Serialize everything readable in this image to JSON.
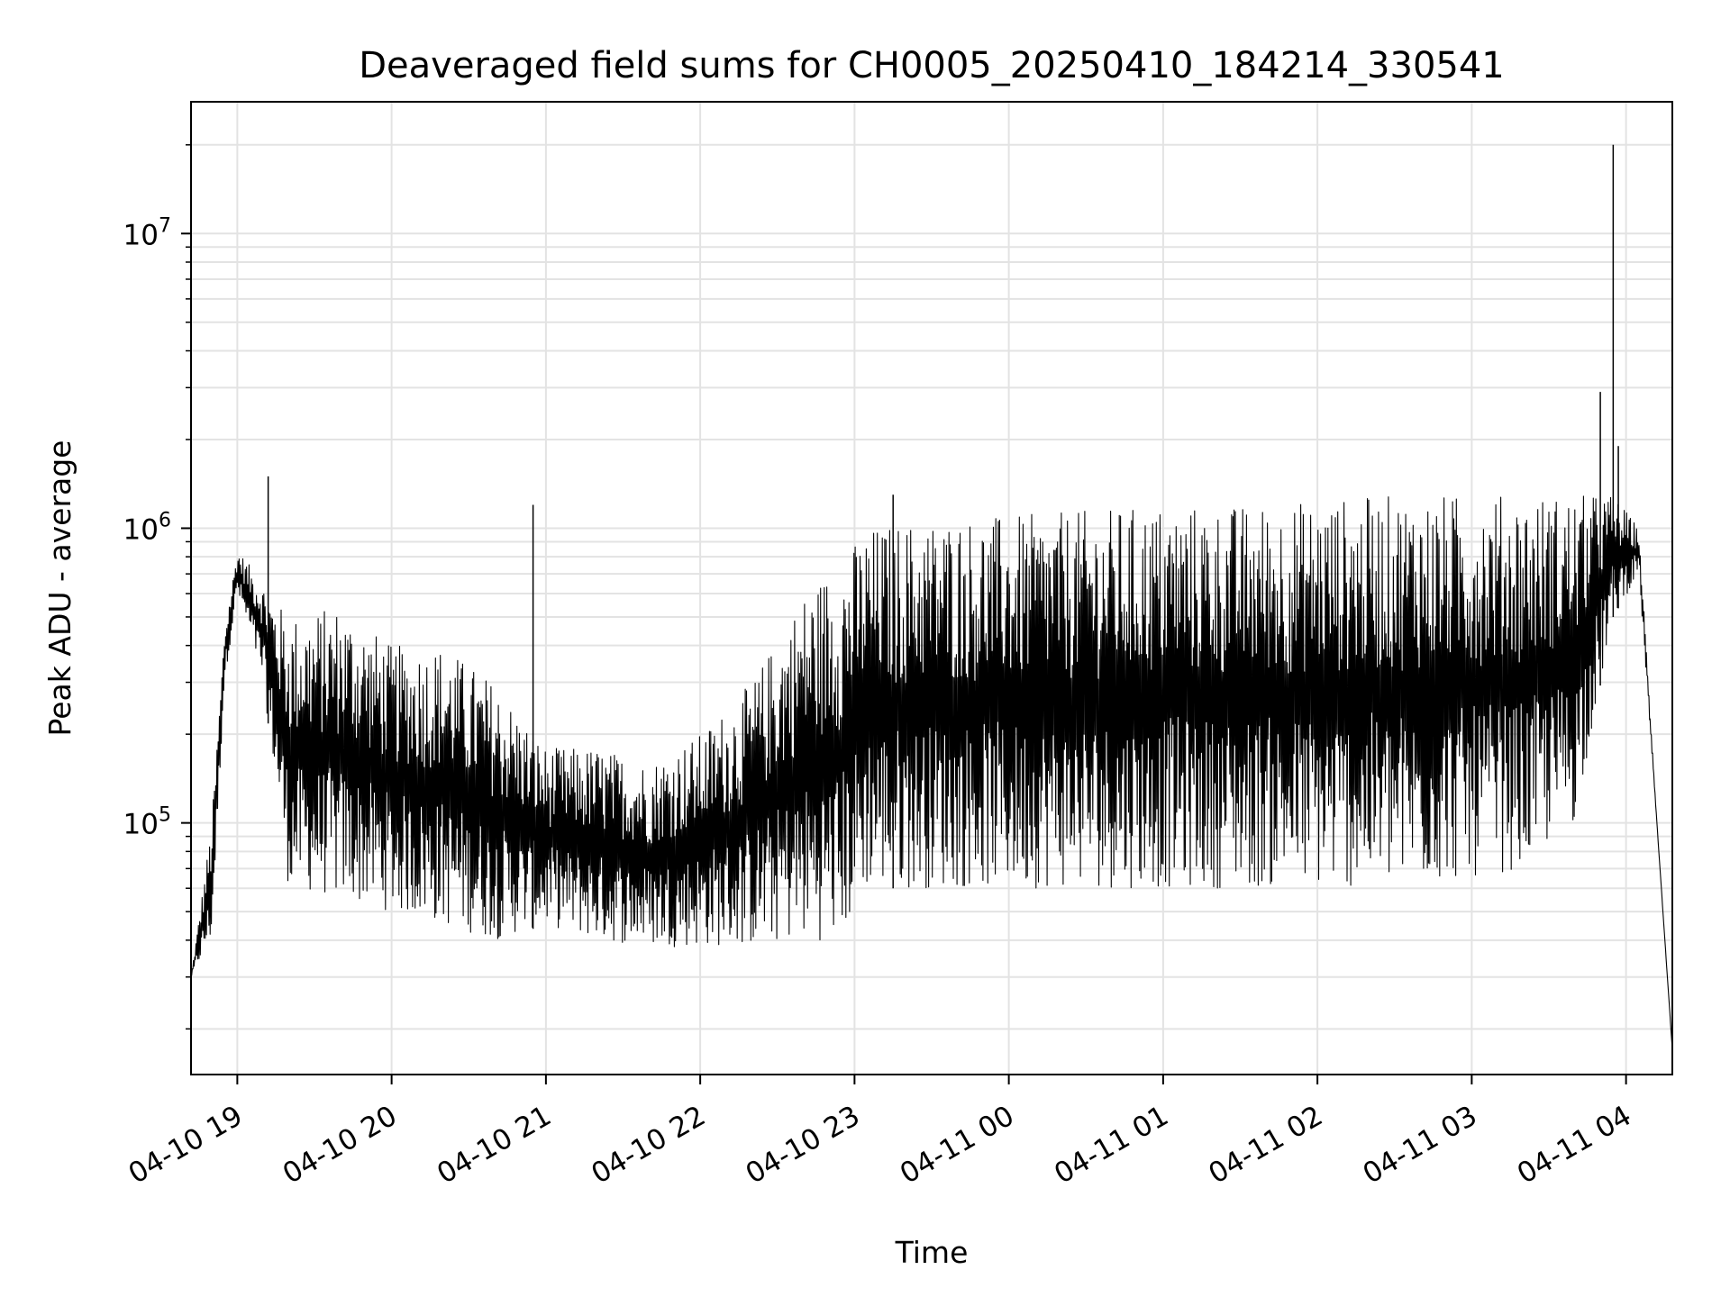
{
  "chart_data": {
    "type": "line",
    "title": "Deaveraged field sums for CH0005_20250410_184214_330541",
    "xlabel": "Time",
    "ylabel": "Peak ADU - average",
    "y_scale": "log",
    "x_ticks": [
      "04-10 19",
      "04-10 20",
      "04-10 21",
      "04-10 22",
      "04-10 23",
      "04-11 00",
      "04-11 01",
      "04-11 02",
      "04-11 03",
      "04-11 04"
    ],
    "y_ticks": [
      {
        "value": 100000,
        "base": "10",
        "exp": "5"
      },
      {
        "value": 1000000,
        "base": "10",
        "exp": "6"
      },
      {
        "value": 10000000,
        "base": "10",
        "exp": "7"
      }
    ],
    "xlim": [
      "2025-04-10 18:42",
      "2025-04-11 04:18"
    ],
    "ylim": [
      14000,
      28000000
    ],
    "grid": true,
    "line_color": "#000000",
    "grid_color": "#e3e3e3",
    "envelope": {
      "time": [
        "2025-04-10 18:42",
        "2025-04-10 18:50",
        "2025-04-10 18:55",
        "2025-04-10 19:00",
        "2025-04-10 19:10",
        "2025-04-10 19:20",
        "2025-04-10 19:40",
        "2025-04-10 20:00",
        "2025-04-10 20:20",
        "2025-04-10 20:40",
        "2025-04-10 21:00",
        "2025-04-10 21:20",
        "2025-04-10 21:40",
        "2025-04-10 22:00",
        "2025-04-10 22:20",
        "2025-04-10 22:40",
        "2025-04-10 22:55",
        "2025-04-10 23:05",
        "2025-04-10 23:20",
        "2025-04-10 23:40",
        "2025-04-11 00:00",
        "2025-04-11 00:30",
        "2025-04-11 01:00",
        "2025-04-11 01:30",
        "2025-04-11 02:00",
        "2025-04-11 02:30",
        "2025-04-11 03:00",
        "2025-04-11 03:20",
        "2025-04-11 03:40",
        "2025-04-11 03:55",
        "2025-04-11 04:05",
        "2025-04-11 04:12",
        "2025-04-11 04:18"
      ],
      "upper": [
        30000,
        100000,
        450000,
        850000,
        650000,
        500000,
        550000,
        400000,
        400000,
        300000,
        180000,
        180000,
        160000,
        200000,
        300000,
        600000,
        800000,
        1000000,
        1050000,
        1100000,
        1100000,
        1150000,
        1200000,
        1200000,
        1250000,
        1300000,
        1300000,
        1300000,
        1300000,
        1300000,
        1000000,
        100000,
        17000
      ],
      "lower": [
        30000,
        40000,
        300000,
        600000,
        300000,
        60000,
        55000,
        50000,
        45000,
        40000,
        45000,
        40000,
        38000,
        38000,
        38000,
        40000,
        40000,
        60000,
        60000,
        60000,
        60000,
        60000,
        60000,
        60000,
        60000,
        60000,
        65000,
        70000,
        100000,
        500000,
        700000,
        100000,
        17000
      ]
    },
    "spikes": [
      {
        "time": "2025-04-10 19:12",
        "value": 1500000
      },
      {
        "time": "2025-04-10 20:55",
        "value": 1200000
      },
      {
        "time": "2025-04-10 23:15",
        "value": 1300000
      },
      {
        "time": "2025-04-11 03:50",
        "value": 2900000
      },
      {
        "time": "2025-04-11 03:55",
        "value": 20000000
      },
      {
        "time": "2025-04-11 03:57",
        "value": 1900000
      }
    ]
  }
}
